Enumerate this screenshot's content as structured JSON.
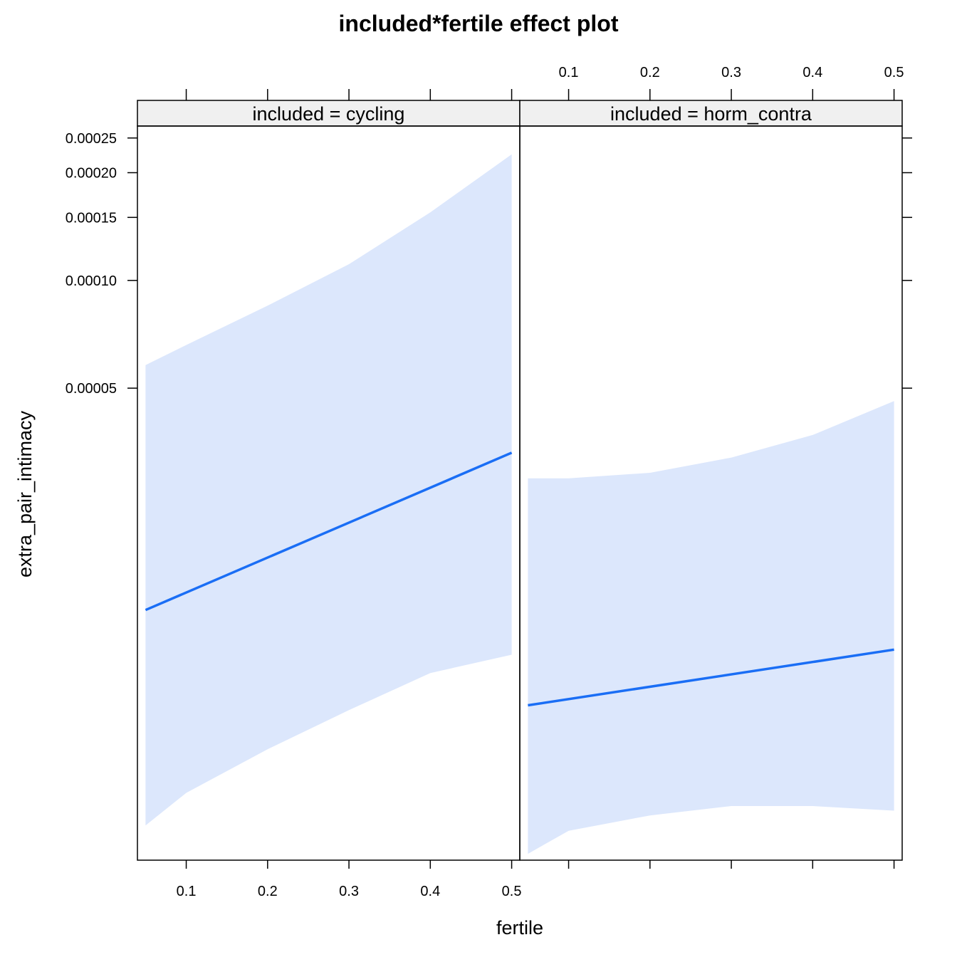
{
  "chart_data": {
    "type": "line",
    "title": "included*fertile effect plot",
    "xlabel": "fertile",
    "ylabel": "extra_pair_intimacy",
    "x_ticks": [
      0.1,
      0.2,
      0.3,
      0.4,
      0.5
    ],
    "x_tick_labels": [
      "0.1",
      "0.2",
      "0.3",
      "0.4",
      "0.5"
    ],
    "xlim": [
      0.04,
      0.51
    ],
    "y_ticks": [
      5e-05,
      0.0001,
      0.00015,
      0.0002,
      0.00025
    ],
    "y_tick_labels": [
      "0.00005",
      "0.00010",
      "0.00015",
      "0.00020",
      "0.00025"
    ],
    "ylim": [
      2.4e-06,
      0.00027
    ],
    "y_scale": "log",
    "grid": false,
    "colors": {
      "line": "#1a6ef5",
      "band": "#dce7fc",
      "strip": "#f0f0f0"
    },
    "panels": [
      {
        "strip": "included = cycling",
        "fit": {
          "x": [
            0.05,
            0.5
          ],
          "y": [
            1.2e-05,
            3.3e-05
          ]
        },
        "band": {
          "x": [
            0.05,
            0.1,
            0.2,
            0.3,
            0.4,
            0.5
          ],
          "upper": [
            5.8e-05,
            6.6e-05,
            8.5e-05,
            0.000111,
            0.000155,
            0.000225
          ],
          "lower": [
            3e-06,
            3.7e-06,
            4.9e-06,
            6.3e-06,
            8e-06,
            9e-06
          ]
        }
      },
      {
        "strip": "included = horm_contra",
        "fit": {
          "x": [
            0.05,
            0.5
          ],
          "y": [
            6.5e-06,
            9.3e-06
          ]
        },
        "band": {
          "x": [
            0.05,
            0.1,
            0.2,
            0.3,
            0.4,
            0.5
          ],
          "upper": [
            2.8e-05,
            2.8e-05,
            2.9e-05,
            3.2e-05,
            3.7e-05,
            4.6e-05
          ],
          "lower": [
            2.5e-06,
            2.9e-06,
            3.2e-06,
            3.4e-06,
            3.4e-06,
            3.3e-06
          ]
        }
      }
    ]
  }
}
